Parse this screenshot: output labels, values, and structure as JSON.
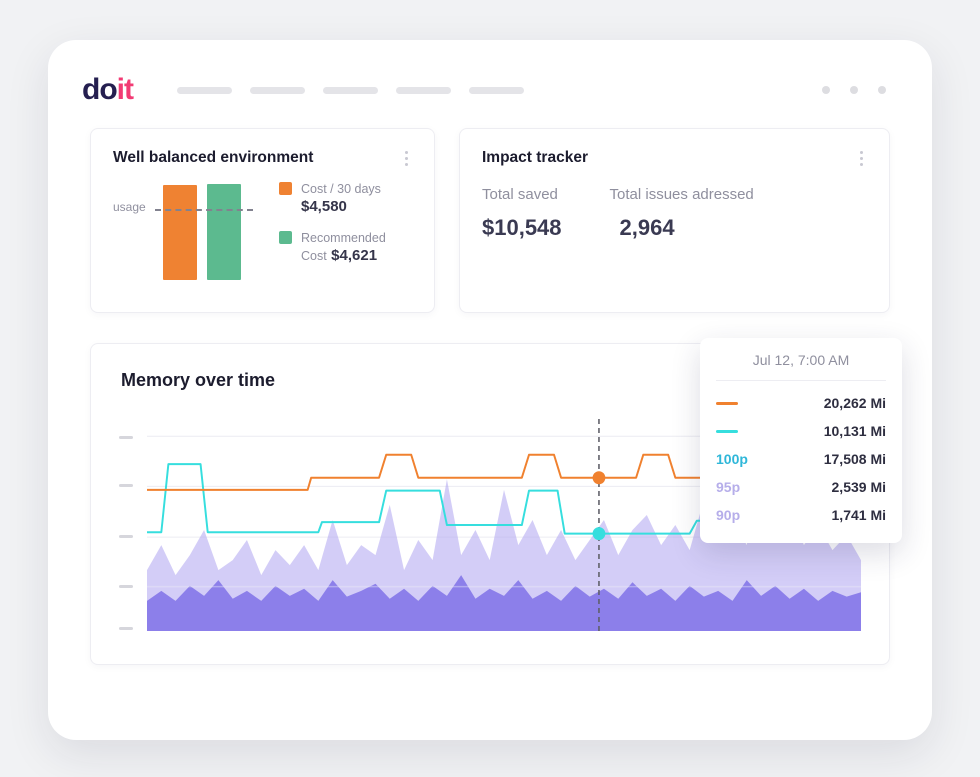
{
  "topbar": {
    "logo_do": "do",
    "logo_it": "it"
  },
  "balanced_card": {
    "title": "Well balanced environment",
    "usage_label": "usage",
    "legend": [
      {
        "label": "Cost / 30 days",
        "value": "$4,580",
        "color": "#ef8232"
      },
      {
        "label": "Recommended Cost",
        "value": "$4,621",
        "color": "#5cba8f"
      }
    ]
  },
  "impact_card": {
    "title": "Impact tracker",
    "stats": [
      {
        "label": "Total saved",
        "value": "$10,548"
      },
      {
        "label": "Total issues adressed",
        "value": "2,964"
      }
    ]
  },
  "memory_card": {
    "title": "Memory over time",
    "tooltip": {
      "timestamp": "Jul 12, 7:00 AM",
      "rows": [
        {
          "swatch": "#f0812f",
          "value": "20,262 Mi"
        },
        {
          "swatch": "#36dede",
          "value": "10,131 Mi"
        },
        {
          "label": "100p",
          "label_color": "#2fb7d9",
          "value": "17,508 Mi"
        },
        {
          "label": "95p",
          "label_color": "#b6aeea",
          "value": "2,539 Mi"
        },
        {
          "label": "90p",
          "label_color": "#b6aeea",
          "value": "1,741 Mi"
        }
      ]
    }
  },
  "chart_data": [
    {
      "type": "bar",
      "title": "Well balanced environment",
      "categories": [
        "Cost / 30 days",
        "Recommended Cost"
      ],
      "values": [
        4580,
        4621
      ],
      "value_labels": [
        "$4,580",
        "$4,621"
      ],
      "colors": [
        "#ef8232",
        "#5cba8f"
      ],
      "ylabel": "usage",
      "annotations": [
        "dashed usage reference line crossing both bars near their tops"
      ]
    },
    {
      "type": "area",
      "title": "Memory over time",
      "ylabel": "Mi",
      "ylim": [
        0,
        29600
      ],
      "y_ticks_mi": [
        27200,
        20200,
        13100,
        6200,
        0
      ],
      "grid": true,
      "cursor": {
        "x_pct": 63.3,
        "timestamp": "Jul 12, 7:00 AM",
        "readout": {
          "orange_line": "20,262 Mi",
          "cyan_line": "10,131 Mi",
          "100p": "17,508 Mi",
          "95p": "2,539 Mi",
          "90p": "1,741 Mi"
        },
        "dots": [
          {
            "color": "#f0812f",
            "mi": 21400
          },
          {
            "color": "#36dede",
            "mi": 13600
          }
        ]
      },
      "series": [
        {
          "name": "area-light",
          "type": "area",
          "color": "#a79bf0",
          "opacity": 0.5,
          "x_step": 2,
          "values": [
            8500,
            12000,
            7800,
            10600,
            14100,
            8500,
            9900,
            12700,
            7800,
            11300,
            9200,
            12000,
            8500,
            15500,
            9200,
            12000,
            10600,
            17600,
            8500,
            12700,
            9900,
            21200,
            10600,
            14100,
            9900,
            19700,
            12000,
            15500,
            10600,
            14100,
            9900,
            12700,
            15500,
            10600,
            14100,
            16200,
            12000,
            14800,
            11300,
            18300,
            12700,
            15500,
            12000,
            22600,
            14100,
            16900,
            12000,
            14800,
            11300,
            13400,
            9900
          ]
        },
        {
          "name": "area-solid",
          "type": "area",
          "color": "#8678e8",
          "opacity": 0.92,
          "x_step": 2,
          "values": [
            4200,
            5600,
            4200,
            6300,
            4900,
            7100,
            4500,
            5600,
            4200,
            6300,
            4900,
            5900,
            4200,
            7100,
            4800,
            5600,
            6600,
            4500,
            5900,
            4200,
            6300,
            4900,
            7800,
            4500,
            5900,
            4900,
            7100,
            4500,
            5600,
            4200,
            6300,
            4800,
            5900,
            4500,
            6800,
            4900,
            5900,
            4200,
            6300,
            4800,
            5600,
            4200,
            7100,
            4900,
            6300,
            4500,
            5900,
            4200,
            5600,
            4800,
            5400
          ]
        },
        {
          "name": "cyan-line",
          "type": "line",
          "color": "#36dede",
          "points": [
            [
              0,
              13800
            ],
            [
              2,
              13800
            ],
            [
              3,
              23300
            ],
            [
              7.5,
              23300
            ],
            [
              8.5,
              13800
            ],
            [
              24,
              13800
            ],
            [
              24.5,
              15200
            ],
            [
              32.5,
              15200
            ],
            [
              33.5,
              19600
            ],
            [
              41,
              19600
            ],
            [
              42,
              14800
            ],
            [
              52.5,
              14800
            ],
            [
              53.5,
              19600
            ],
            [
              57.5,
              19600
            ],
            [
              58.5,
              13600
            ],
            [
              76,
              13600
            ],
            [
              77,
              15400
            ],
            [
              90,
              15400
            ],
            [
              91,
              13600
            ],
            [
              100,
              13600
            ]
          ]
        },
        {
          "name": "orange-line",
          "type": "line",
          "color": "#f0812f",
          "points": [
            [
              0,
              19700
            ],
            [
              22.5,
              19700
            ],
            [
              23,
              21400
            ],
            [
              32.5,
              21400
            ],
            [
              33.5,
              24600
            ],
            [
              37,
              24600
            ],
            [
              38,
              21400
            ],
            [
              52.5,
              21400
            ],
            [
              53.5,
              24600
            ],
            [
              57,
              24600
            ],
            [
              58,
              21400
            ],
            [
              68.5,
              21400
            ],
            [
              69.5,
              24600
            ],
            [
              73,
              24600
            ],
            [
              74,
              21400
            ],
            [
              100,
              21400
            ]
          ]
        }
      ]
    }
  ]
}
